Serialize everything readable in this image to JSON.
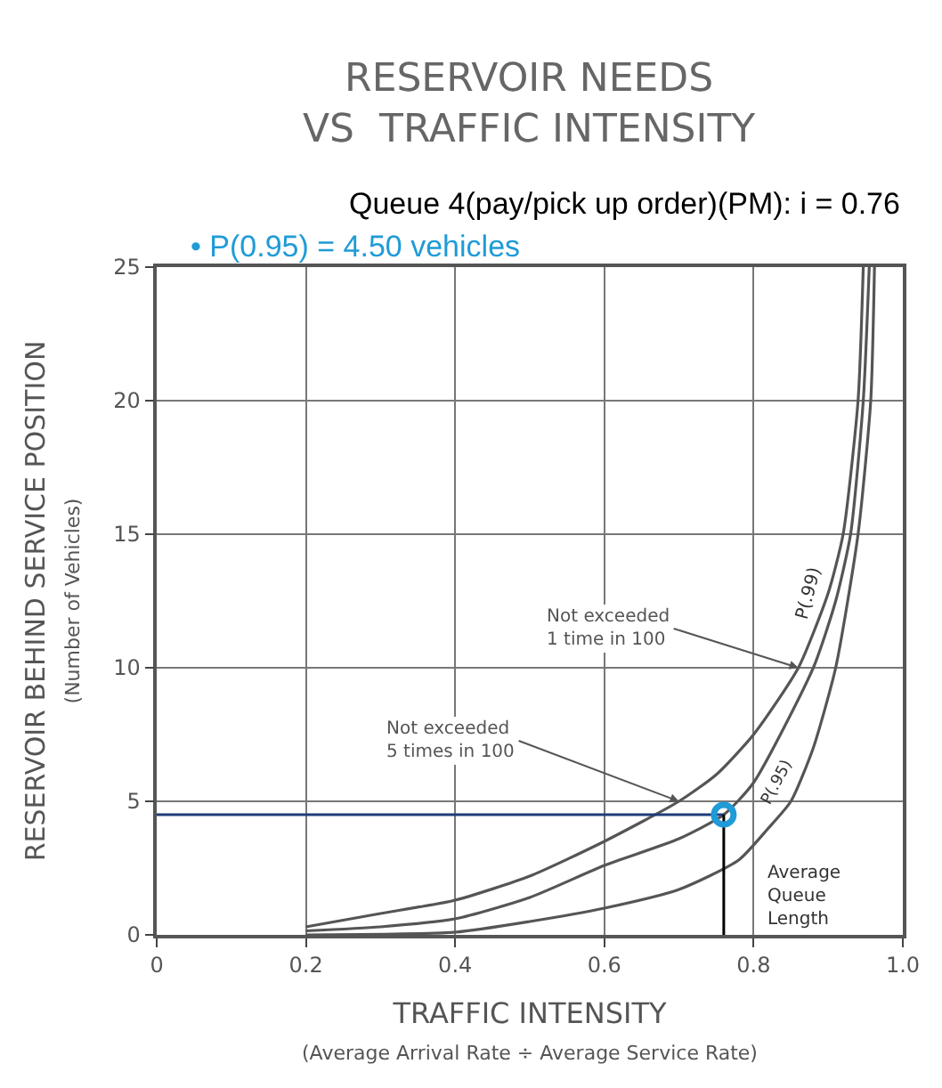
{
  "chart_data": {
    "type": "line",
    "title": "RESERVOIR NEEDS\nVS  TRAFFIC INTENSITY",
    "subtitle": "Queue 4(pay/pick up order)(PM): i = 0.76",
    "xlabel": "TRAFFIC INTENSITY\n(Average Arrival Rate ÷ Average Service Rate)",
    "ylabel": "RESERVOIR BEHIND SERVICE POSITION\n(Number of Vehicles)",
    "xlim": [
      0,
      1.0
    ],
    "ylim": [
      0,
      25
    ],
    "xticks": [
      0,
      0.2,
      0.4,
      0.6,
      0.8,
      {
        "value": 1.0,
        "label": "1.0"
      }
    ],
    "yticks": [
      0,
      5,
      10,
      15,
      20,
      25
    ],
    "grid": true,
    "legend": false,
    "marker": "none",
    "line_style": "solid",
    "series": [
      {
        "name": "P(.99)",
        "color": "#555555",
        "x": [
          0.2,
          0.3,
          0.4,
          0.5,
          0.6,
          0.7,
          0.75,
          0.8,
          0.86,
          0.9,
          0.92,
          0.94,
          0.947
        ],
        "values": [
          0.3,
          0.8,
          1.3,
          2.2,
          3.5,
          5.0,
          6.0,
          7.5,
          10,
          12.8,
          15,
          20,
          25
        ]
      },
      {
        "name": "P(.95)",
        "color": "#555555",
        "x": [
          0.2,
          0.3,
          0.4,
          0.5,
          0.6,
          0.7,
          0.76,
          0.8,
          0.88,
          0.91,
          0.93,
          0.947,
          0.955
        ],
        "values": [
          0.15,
          0.3,
          0.6,
          1.4,
          2.6,
          3.6,
          4.5,
          5.7,
          10,
          12.5,
          15,
          20,
          25
        ]
      },
      {
        "name": "Average\nQueue\nLength",
        "color": "#555555",
        "x": [
          0.2,
          0.4,
          0.5,
          0.6,
          0.7,
          0.78,
          0.82,
          0.85,
          0.88,
          0.91,
          0.94,
          0.957,
          0.962
        ],
        "values": [
          0,
          0.1,
          0.5,
          1.0,
          1.7,
          2.8,
          4.0,
          5.0,
          7.0,
          10,
          15,
          20,
          25
        ]
      },
      {
        "type": "line",
        "color": "#1f3c7a",
        "x": [
          0,
          0.76
        ],
        "values": [
          4.5,
          4.5
        ]
      },
      {
        "type": "line",
        "color": "#000000",
        "x": [
          0.76,
          0.76
        ],
        "values": [
          4.5,
          0
        ]
      },
      {
        "type": "scatter",
        "marker": "circle",
        "color": "#1f9bd7",
        "x": [
          0.76
        ],
        "values": [
          4.5
        ]
      }
    ],
    "annotations": [
      "• P(0.95) = 4.50 vehicles",
      {
        "text": "Not exceeded\n1 time in 100",
        "x": 0.86,
        "y": 10
      },
      {
        "text": "Not exceeded\n5 times in 100",
        "x": 0.7,
        "y": 5.0
      }
    ]
  }
}
